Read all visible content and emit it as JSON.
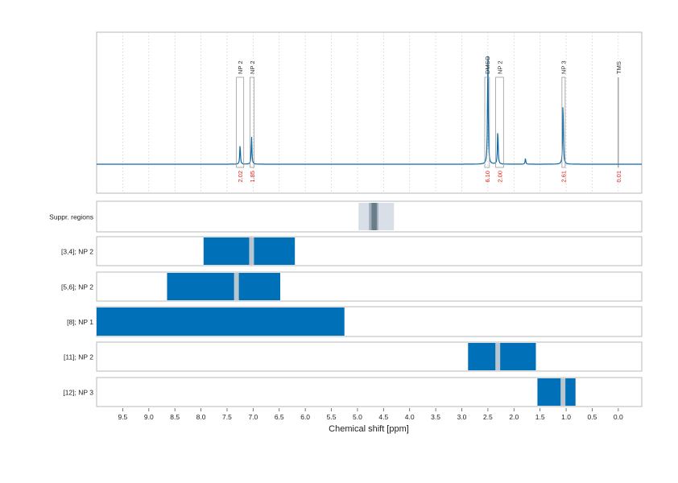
{
  "chart_data": {
    "type": "nmr-spectrum",
    "xlabel": "Chemical shift [ppm]",
    "xlim": [
      10.0,
      -0.45
    ],
    "x_reversed": true,
    "xticks": [
      "9.5",
      "9.0",
      "8.5",
      "8.0",
      "7.5",
      "7.0",
      "6.5",
      "6.0",
      "5.5",
      "5.0",
      "4.5",
      "4.0",
      "3.5",
      "3.0",
      "2.5",
      "2.0",
      "1.5",
      "1.0",
      "0.5",
      "0.0"
    ],
    "grid": "vertical-dotted",
    "colors": {
      "spectrum": "#0a6aa8",
      "integral_text": "#e0231c",
      "bar_fill": "#0070b8",
      "center_marker": "#b8c6d2",
      "suppr_outer": "#d8dfe6",
      "suppr_mid": "#9fb0bd",
      "suppr_core": "#6b7c89",
      "frame": "#b8b8b8",
      "tms_line": "#7a7a7a"
    },
    "peaks": [
      {
        "label": "NP 2",
        "ppm": 7.25,
        "range": [
          7.32,
          7.18
        ],
        "height": 0.14,
        "integral": "2.02"
      },
      {
        "label": "NP 2",
        "ppm": 7.03,
        "range": [
          7.06,
          6.98
        ],
        "height": 0.2,
        "integral": "1.85"
      },
      {
        "label": "DMSO",
        "ppm": 2.5,
        "range": [
          2.56,
          2.47
        ],
        "height": 0.8,
        "integral": "6.10"
      },
      {
        "label": "NP 2",
        "ppm": 2.31,
        "range": [
          2.35,
          2.2
        ],
        "height": 0.25,
        "integral": "2.00"
      },
      {
        "label": "NP 3",
        "ppm": 1.06,
        "range": [
          1.08,
          1.03
        ],
        "height": 0.45,
        "integral": "2.61"
      },
      {
        "label": "TMS",
        "ppm": 0.0,
        "range": [
          0.0,
          0.0
        ],
        "height": 0.8,
        "integral": "0.01"
      }
    ],
    "minor_peaks": [
      {
        "ppm": 1.78,
        "height": 0.04
      }
    ],
    "rows": [
      {
        "label": "Suppr. regions",
        "type": "suppression",
        "outer": [
          4.98,
          4.3
        ],
        "mid": [
          4.78,
          4.6
        ],
        "core": [
          4.73,
          4.63
        ]
      },
      {
        "label": "[3,4]; NP 2",
        "type": "bar",
        "range": [
          7.95,
          6.2
        ],
        "center": 7.03
      },
      {
        "label": "[5,6]; NP 2",
        "type": "bar",
        "range": [
          8.65,
          6.48
        ],
        "center": 7.32
      },
      {
        "label": "[8]; NP 1",
        "type": "bar",
        "range": [
          10.0,
          5.25
        ],
        "center": null
      },
      {
        "label": "[11]; NP 2",
        "type": "bar",
        "range": [
          2.88,
          1.58
        ],
        "center": 2.31
      },
      {
        "label": "[12]; NP 3",
        "type": "bar",
        "range": [
          1.55,
          0.82
        ],
        "center": 1.06
      }
    ]
  }
}
